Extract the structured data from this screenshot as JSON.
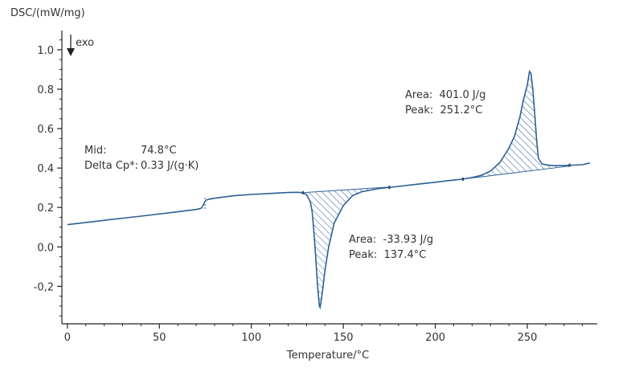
{
  "chart_data": {
    "type": "line",
    "ylabel": "DSC/(mW/mg)",
    "xlabel": "Temperature/°C",
    "exo_label": "exo",
    "xlim": [
      -3,
      288
    ],
    "ylim": [
      -0.39,
      1.13
    ],
    "x_ticks": [
      0,
      50,
      100,
      150,
      200,
      250
    ],
    "x_tick_labels": [
      "0",
      "50",
      "100",
      "150",
      "200",
      "250"
    ],
    "y_ticks": [
      1.0,
      0.8,
      0.6,
      0.4,
      0.2,
      0.0,
      -0.2
    ],
    "y_tick_labels": [
      "1.0",
      "0.8",
      "0.6",
      "0.4",
      "0.2",
      "0.0",
      "-0,2"
    ],
    "grid": false,
    "colors": {
      "curve": "#2e5f94",
      "hatch": "#2e5f94",
      "text": "#333333",
      "axis": "#222222"
    },
    "series": [
      {
        "x": [
          0,
          20,
          40,
          60,
          70,
          72,
          73,
          74,
          74.8,
          75.5,
          77,
          80,
          90,
          100,
          110,
          120,
          125,
          128,
          130,
          132,
          133,
          134,
          135,
          136,
          137,
          137.4,
          138,
          139,
          140,
          142,
          145,
          150,
          155,
          160,
          170,
          180,
          190,
          200,
          210,
          215,
          220,
          225,
          230,
          235,
          240,
          243,
          246,
          248,
          250,
          251.2,
          252,
          253,
          254,
          255,
          256,
          258,
          262,
          265,
          270,
          275,
          280,
          284
        ],
        "y": [
          0.113,
          0.135,
          0.156,
          0.178,
          0.19,
          0.194,
          0.198,
          0.215,
          0.231,
          0.238,
          0.242,
          0.247,
          0.259,
          0.266,
          0.271,
          0.276,
          0.277,
          0.275,
          0.265,
          0.23,
          0.18,
          0.08,
          -0.05,
          -0.2,
          -0.3,
          -0.307,
          -0.27,
          -0.2,
          -0.12,
          0.0,
          0.12,
          0.21,
          0.26,
          0.28,
          0.297,
          0.307,
          0.318,
          0.328,
          0.339,
          0.344,
          0.352,
          0.363,
          0.385,
          0.427,
          0.5,
          0.56,
          0.66,
          0.75,
          0.82,
          0.89,
          0.88,
          0.8,
          0.68,
          0.55,
          0.45,
          0.42,
          0.414,
          0.412,
          0.413,
          0.415,
          0.417,
          0.426
        ]
      }
    ],
    "peaks": [
      {
        "label": "endo",
        "area_text": "Area:  -33.93 J/g",
        "peak_text": "Peak:  137.4°C",
        "x_from": 128,
        "x_to": 175,
        "baseline_from": [
          128,
          0.275
        ],
        "baseline_to": [
          175,
          0.304
        ]
      },
      {
        "label": "exo",
        "area_text": "Area:  401.0 J/g",
        "peak_text": "Peak:  251.2°C",
        "x_from": 215,
        "x_to": 273,
        "baseline_from": [
          215,
          0.344
        ],
        "baseline_to": [
          273,
          0.41
        ]
      }
    ],
    "glass_transition": {
      "mid_label": "Mid:",
      "mid_value": "74.8°C",
      "cp_label": "Delta Cp*:",
      "cp_value": "0.33 J/(g·K)",
      "x_mid": 74.8
    }
  }
}
